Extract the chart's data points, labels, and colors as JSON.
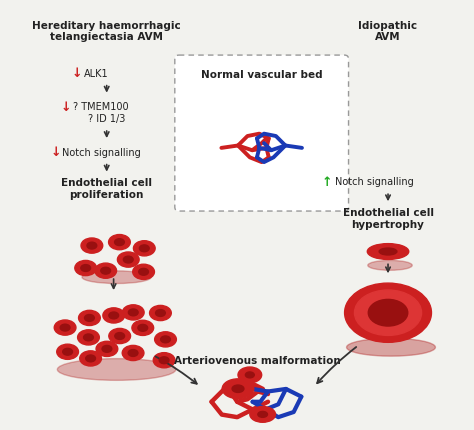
{
  "bg_color": "#f2f2ee",
  "title_left": "Hereditary haemorrhagic\ntelangiectasia AVM",
  "title_right": "Idiopathic\nAVM",
  "left_bold_proliferation": "Endothelial cell\nproliferation",
  "right_bold_hypertrophy": "Endothelial cell\nhypertrophy",
  "center_label": "Normal vascular bed",
  "bottom_center_label": "Arteriovenous malformation",
  "red_color": "#cc2020",
  "blue_color": "#1a3ab5",
  "dark_red": "#8b0000",
  "cell_red": "#cc2020",
  "cell_inner": "#991010",
  "shadow_red": "#aa1010",
  "green_arrow": "#22aa22",
  "text_color": "#222222",
  "arrow_color": "#333333",
  "box_edge": "#999999"
}
